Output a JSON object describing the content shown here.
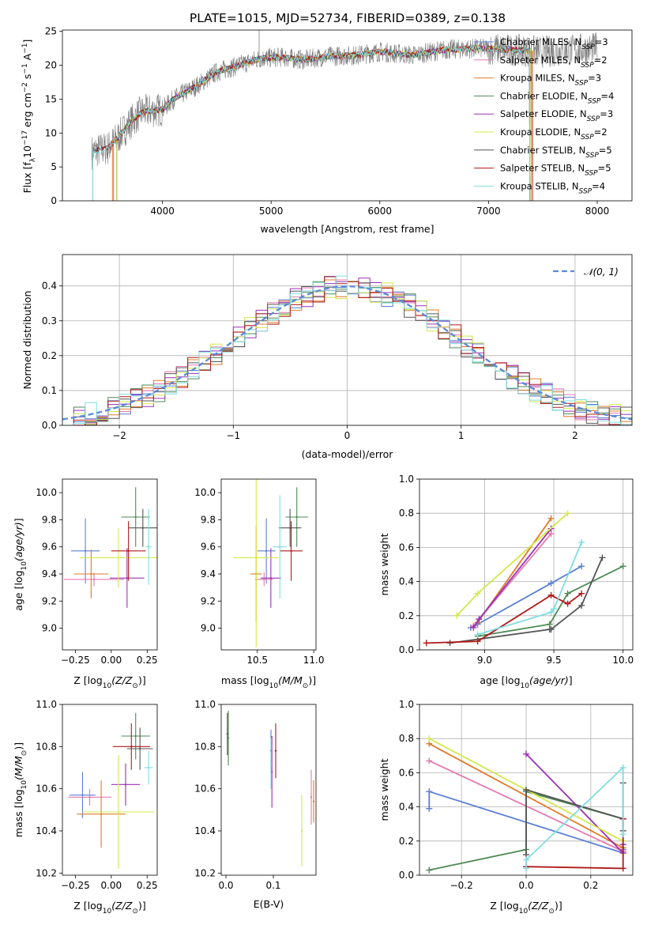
{
  "figure": {
    "title": "PLATE=1015, MJD=52734, FIBERID=0389, z=0.138"
  },
  "models": [
    {
      "name": "Chabrier MILES",
      "nssp": "3",
      "color": "#5b7fd6"
    },
    {
      "name": "Salpeter MILES",
      "nssp": "2",
      "color": "#e378b0"
    },
    {
      "name": "Kroupa MILES",
      "nssp": "3",
      "color": "#e07b2a"
    },
    {
      "name": "Chabrier ELODIE",
      "nssp": "4",
      "color": "#4f8a55"
    },
    {
      "name": "Salpeter ELODIE",
      "nssp": "3",
      "color": "#9b30b8"
    },
    {
      "name": "Kroupa ELODIE",
      "nssp": "2",
      "color": "#d4e84a"
    },
    {
      "name": "Chabrier STELIB",
      "nssp": "5",
      "color": "#555555"
    },
    {
      "name": "Salpeter STELIB",
      "nssp": "5",
      "color": "#b01a1a"
    },
    {
      "name": "Kroupa STELIB",
      "nssp": "4",
      "color": "#7fdde0"
    }
  ],
  "chart_data": [
    {
      "id": "spectrum",
      "type": "line",
      "xlabel": "wavelength [Angstrom, rest frame]",
      "ylabel": "Flux [f_λ10^-17 erg cm^-2 s^-1 A^-1]",
      "xlim": [
        3080,
        8320
      ],
      "ylim": [
        0,
        25.2
      ],
      "xticks": [
        4000,
        5000,
        6000,
        7000,
        8000
      ],
      "yticks": [
        0,
        5,
        10,
        15,
        20,
        25
      ],
      "data_color": "#7f7f7f",
      "data_range": [
        3350,
        8000
      ],
      "continuum": [
        [
          3350,
          7.2
        ],
        [
          3500,
          7.8
        ],
        [
          3600,
          9.5
        ],
        [
          3700,
          11.5
        ],
        [
          3800,
          13.0
        ],
        [
          3900,
          13.3
        ],
        [
          4000,
          13.5
        ],
        [
          4100,
          15.0
        ],
        [
          4300,
          16.8
        ],
        [
          4500,
          19.0
        ],
        [
          4700,
          20.0
        ],
        [
          4900,
          21.0
        ],
        [
          5100,
          21.2
        ],
        [
          5300,
          20.8
        ],
        [
          5500,
          21.3
        ],
        [
          5800,
          21.5
        ],
        [
          6000,
          22.0
        ],
        [
          6300,
          21.5
        ],
        [
          6600,
          22.3
        ],
        [
          6900,
          22.5
        ],
        [
          7200,
          22.3
        ],
        [
          7500,
          22.0
        ],
        [
          7800,
          22.3
        ],
        [
          8000,
          22.5
        ]
      ],
      "model_ranges": [
        [
          3550,
          7400
        ],
        [
          3550,
          7400
        ],
        [
          3540,
          7410
        ],
        [
          3580,
          7390
        ],
        [
          3580,
          7390
        ],
        [
          3580,
          7390
        ],
        [
          3360,
          7380
        ],
        [
          3360,
          7380
        ],
        [
          3360,
          7380
        ]
      ],
      "grid": false,
      "legend": "top-right"
    },
    {
      "id": "residuals",
      "type": "histogram",
      "xlabel": "(data-model)/error",
      "ylabel": "Normed distribution",
      "xlim": [
        -2.5,
        2.5
      ],
      "ylim": [
        0,
        0.49
      ],
      "xticks": [
        -2,
        -1,
        0,
        1,
        2
      ],
      "yticks": [
        0,
        0.1,
        0.2,
        0.3,
        0.4
      ],
      "bin_width": 0.1,
      "reference": {
        "label": "𝒩(0, 1)",
        "mean": 0,
        "sigma": 1
      },
      "grid": true,
      "legend": "top-right"
    },
    {
      "id": "age_vs_z",
      "type": "scatter",
      "xlabel": "Z [log10(Z/Z_sun)]",
      "ylabel": "age [log10(age/yr)]",
      "xlim": [
        -0.34,
        0.32
      ],
      "ylim": [
        8.84,
        10.1
      ],
      "xticks": [
        -0.25,
        0,
        0.25
      ],
      "yticks": [
        9.0,
        9.2,
        9.4,
        9.6,
        9.8,
        10.0
      ],
      "points": [
        {
          "x": -0.18,
          "xerr": 0.1,
          "y": 9.57,
          "yerr": 0.24
        },
        {
          "x": -0.12,
          "xerr": 0.21,
          "y": 9.36,
          "yerr": 0.05
        },
        {
          "x": -0.14,
          "xerr": 0.12,
          "y": 9.4,
          "yerr": 0.18
        },
        {
          "x": 0.17,
          "xerr": 0.1,
          "y": 9.82,
          "yerr": 0.22
        },
        {
          "x": 0.11,
          "xerr": 0.12,
          "y": 9.37,
          "yerr": 0.22
        },
        {
          "x": 0.05,
          "xerr": 0.27,
          "y": 9.52,
          "yerr": 0.22
        },
        {
          "x": 0.22,
          "xerr": 0.1,
          "y": 9.74,
          "yerr": 0.14
        },
        {
          "x": 0.12,
          "xerr": 0.12,
          "y": 9.57,
          "yerr": 0.22
        },
        {
          "x": 0.26,
          "xerr": 0.02,
          "y": 9.6,
          "yerr": 0.28
        }
      ]
    },
    {
      "id": "age_vs_mass",
      "type": "scatter",
      "xlabel": "mass [log10(M/M_sun)]",
      "xlim": [
        10.18,
        11.02
      ],
      "ylim": [
        8.84,
        10.1
      ],
      "xticks": [
        10.5,
        11.0
      ],
      "yticks": [
        9.0,
        9.2,
        9.4,
        9.6,
        9.8,
        10.0
      ],
      "points": [
        {
          "x": 10.58,
          "xerr": 0.08,
          "y": 9.57,
          "yerr": 0.24
        },
        {
          "x": 10.56,
          "xerr": 0.08,
          "y": 9.36,
          "yerr": 0.05
        },
        {
          "x": 10.49,
          "xerr": 0.05,
          "y": 9.4,
          "yerr": 0.35
        },
        {
          "x": 10.85,
          "xerr": 0.1,
          "y": 9.82,
          "yerr": 0.22
        },
        {
          "x": 10.62,
          "xerr": 0.09,
          "y": 9.37,
          "yerr": 0.22
        },
        {
          "x": 10.49,
          "xerr": 0.2,
          "y": 9.52,
          "yerr": 0.66
        },
        {
          "x": 10.79,
          "xerr": 0.1,
          "y": 9.74,
          "yerr": 0.14
        },
        {
          "x": 10.8,
          "xerr": 0.1,
          "y": 9.57,
          "yerr": 0.22
        },
        {
          "x": 10.7,
          "xerr": 0.06,
          "y": 9.6,
          "yerr": 0.38
        }
      ]
    },
    {
      "id": "weight_vs_age",
      "type": "line",
      "xlabel": "age [log10(age/yr)]",
      "ylabel": "mass weight",
      "xlim": [
        8.53,
        10.07
      ],
      "ylim": [
        0,
        1.0
      ],
      "xticks": [
        9.0,
        9.5,
        10.0
      ],
      "yticks": [
        0,
        0.2,
        0.4,
        0.6,
        0.8,
        1.0
      ],
      "grid": true,
      "series": [
        {
          "x": [
            8.9,
            8.95,
            9.48,
            9.7
          ],
          "y": [
            0.13,
            0.15,
            0.39,
            0.49
          ]
        },
        {
          "x": [
            8.92,
            9.48
          ],
          "y": [
            0.14,
            0.68
          ]
        },
        {
          "x": [
            8.95,
            9.48
          ],
          "y": [
            0.16,
            0.77
          ]
        },
        {
          "x": [
            8.95,
            9.47,
            9.6,
            10.0
          ],
          "y": [
            0.08,
            0.15,
            0.33,
            0.49
          ]
        },
        {
          "x": [
            8.92,
            8.96,
            9.48
          ],
          "y": [
            0.13,
            0.18,
            0.71
          ]
        },
        {
          "x": [
            8.8,
            8.95,
            9.6
          ],
          "y": [
            0.2,
            0.33,
            0.8
          ]
        },
        {
          "x": [
            8.75,
            9.47,
            9.48,
            9.7,
            9.85
          ],
          "y": [
            0.04,
            0.12,
            0.12,
            0.26,
            0.54
          ]
        },
        {
          "x": [
            8.58,
            8.95,
            9.48,
            9.6,
            9.7
          ],
          "y": [
            0.04,
            0.05,
            0.32,
            0.27,
            0.33
          ]
        },
        {
          "x": [
            8.95,
            9.48,
            9.5,
            9.7
          ],
          "y": [
            0.09,
            0.22,
            0.24,
            0.63
          ]
        }
      ]
    },
    {
      "id": "mass_vs_z",
      "type": "scatter",
      "xlabel": "Z [log10(Z/Z_sun)]",
      "ylabel": "mass [log10(M/M_sun)]",
      "xlim": [
        -0.34,
        0.32
      ],
      "ylim": [
        10.19,
        11.0
      ],
      "xticks": [
        -0.25,
        0,
        0.25
      ],
      "yticks": [
        10.2,
        10.4,
        10.6,
        10.8,
        11.0
      ],
      "points": [
        {
          "x": -0.2,
          "xerr": 0.09,
          "y": 10.57,
          "yerr": 0.11
        },
        {
          "x": -0.15,
          "xerr": 0.15,
          "y": 10.56,
          "yerr": 0.04
        },
        {
          "x": -0.07,
          "xerr": 0.17,
          "y": 10.48,
          "yerr": 0.16
        },
        {
          "x": 0.17,
          "xerr": 0.1,
          "y": 10.85,
          "yerr": 0.11
        },
        {
          "x": 0.1,
          "xerr": 0.1,
          "y": 10.62,
          "yerr": 0.1
        },
        {
          "x": 0.05,
          "xerr": 0.25,
          "y": 10.49,
          "yerr": 0.27
        },
        {
          "x": 0.2,
          "xerr": 0.09,
          "y": 10.79,
          "yerr": 0.1
        },
        {
          "x": 0.14,
          "xerr": 0.13,
          "y": 10.8,
          "yerr": 0.11
        },
        {
          "x": 0.26,
          "xerr": 0.03,
          "y": 10.7,
          "yerr": 0.08
        }
      ]
    },
    {
      "id": "mass_vs_ebv",
      "type": "scatter",
      "xlabel": "E(B-V)",
      "xlim": [
        -0.01,
        0.19
      ],
      "ylim": [
        10.19,
        11.0
      ],
      "xticks": [
        0.0,
        0.1
      ],
      "yticks": [
        10.2,
        10.4,
        10.6,
        10.8,
        11.0
      ],
      "points": [
        {
          "x": 0.095,
          "xerr": 0,
          "y": 10.78,
          "yerr": 0.1
        },
        {
          "x": 0.18,
          "xerr": 0,
          "y": 10.56,
          "yerr": 0.13
        },
        {
          "x": 0.185,
          "xerr": 0,
          "y": 10.54,
          "yerr": 0.1
        },
        {
          "x": 0.005,
          "xerr": 0,
          "y": 10.84,
          "yerr": 0.13
        },
        {
          "x": 0.097,
          "xerr": 0,
          "y": 10.68,
          "yerr": 0.17
        },
        {
          "x": 0.16,
          "xerr": 0,
          "y": 10.4,
          "yerr": 0.17
        },
        {
          "x": 0.003,
          "xerr": 0,
          "y": 10.86,
          "yerr": 0.1
        },
        {
          "x": 0.105,
          "xerr": 0,
          "y": 10.78,
          "yerr": 0.13
        },
        {
          "x": 0.095,
          "xerr": 0,
          "y": 10.72,
          "yerr": 0.12
        }
      ]
    },
    {
      "id": "weight_vs_z",
      "type": "line",
      "xlabel": "Z [log10(Z/Z_sun)]",
      "ylabel": "mass weight",
      "xlim": [
        -0.33,
        0.33
      ],
      "ylim": [
        0,
        1.0
      ],
      "xticks": [
        -0.2,
        0.0,
        0.2
      ],
      "yticks": [
        0,
        0.2,
        0.4,
        0.6,
        0.8,
        1.0
      ],
      "grid": true,
      "series": [
        {
          "x": [
            -0.3,
            -0.3,
            0.3,
            0.3
          ],
          "y": [
            0.39,
            0.49,
            0.13,
            0.15
          ]
        },
        {
          "x": [
            -0.3,
            0.3
          ],
          "y": [
            0.67,
            0.14
          ]
        },
        {
          "x": [
            -0.3,
            0.3
          ],
          "y": [
            0.77,
            0.16
          ]
        },
        {
          "x": [
            -0.3,
            0.0,
            0.0,
            0.3
          ],
          "y": [
            0.03,
            0.15,
            0.49,
            0.33
          ]
        },
        {
          "x": [
            0.0,
            0.3,
            0.3
          ],
          "y": [
            0.71,
            0.13,
            0.18
          ]
        },
        {
          "x": [
            -0.3,
            0.3
          ],
          "y": [
            0.8,
            0.2
          ]
        },
        {
          "x": [
            0.0,
            0.0,
            0.3,
            0.3,
            0.3
          ],
          "y": [
            0.12,
            0.5,
            0.33,
            0.26,
            0.54
          ]
        },
        {
          "x": [
            0.0,
            0.3,
            0.3
          ],
          "y": [
            0.05,
            0.04,
            0.33
          ]
        },
        {
          "x": [
            0.0,
            0.0,
            0.3,
            0.3
          ],
          "y": [
            0.04,
            0.09,
            0.63,
            0.24
          ]
        }
      ]
    }
  ]
}
